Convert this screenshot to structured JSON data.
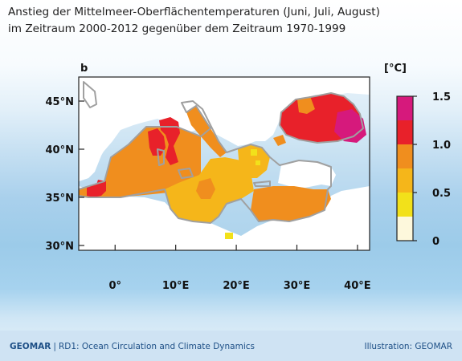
{
  "title": {
    "line1": "Anstieg der Mittelmeer-Oberflächentemperaturen (Juni, Juli, August)",
    "line2": "im Zeitraum 2000-2012 gegenüber dem Zeitraum 1970-1999"
  },
  "map": {
    "panel_label": "b",
    "lat_labels": [
      "45°N",
      "40°N",
      "35°N",
      "30°N"
    ],
    "lon_labels": [
      "0°",
      "10°E",
      "20°E",
      "30°E",
      "40°E"
    ],
    "lat_values": [
      45,
      40,
      35,
      30
    ],
    "lon_values": [
      0,
      10,
      20,
      30,
      40
    ],
    "lon_range": [
      -6,
      42
    ],
    "lat_range": [
      29.5,
      47.5
    ],
    "colors": {
      "land": "#ffffff",
      "coast": "#a0a0a0",
      "frame": "#222222"
    }
  },
  "colorbar": {
    "unit": "[°C]",
    "tick_labels": [
      "1.5",
      "1.0",
      "0.5",
      "0"
    ],
    "tick_values": [
      1.5,
      1.0,
      0.5,
      0
    ],
    "bins": [
      {
        "from": 0.0,
        "to": 0.25,
        "color": "#fdf8dc"
      },
      {
        "from": 0.25,
        "to": 0.5,
        "color": "#f2e11a"
      },
      {
        "from": 0.5,
        "to": 0.75,
        "color": "#f5b61a"
      },
      {
        "from": 0.75,
        "to": 1.0,
        "color": "#f08e1e"
      },
      {
        "from": 1.0,
        "to": 1.25,
        "color": "#e8212a"
      },
      {
        "from": 1.25,
        "to": 1.5,
        "color": "#d6197c"
      }
    ]
  },
  "footer": {
    "org": "GEOMAR",
    "separator": "|",
    "unit": "RD1: Ocean Circulation and Climate Dynamics",
    "credit": "Illustration: GEOMAR"
  }
}
